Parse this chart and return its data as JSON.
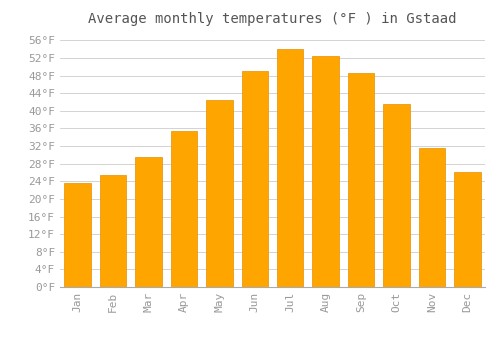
{
  "title": "Average monthly temperatures (°F ) in Gstaad",
  "months": [
    "Jan",
    "Feb",
    "Mar",
    "Apr",
    "May",
    "Jun",
    "Jul",
    "Aug",
    "Sep",
    "Oct",
    "Nov",
    "Dec"
  ],
  "values": [
    23.5,
    25.5,
    29.5,
    35.5,
    42.5,
    49.0,
    54.0,
    52.5,
    48.5,
    41.5,
    31.5,
    26.0
  ],
  "bar_color": "#FFA500",
  "bar_edge_color": "#E89000",
  "background_color": "#FFFFFF",
  "plot_bg_color": "#FFFFFF",
  "grid_color": "#CCCCCC",
  "ylim": [
    0,
    58
  ],
  "yticks": [
    0,
    4,
    8,
    12,
    16,
    20,
    24,
    28,
    32,
    36,
    40,
    44,
    48,
    52,
    56
  ],
  "ytick_labels": [
    "0°F",
    "4°F",
    "8°F",
    "12°F",
    "16°F",
    "20°F",
    "24°F",
    "28°F",
    "32°F",
    "36°F",
    "40°F",
    "44°F",
    "48°F",
    "52°F",
    "56°F"
  ],
  "title_fontsize": 10,
  "tick_fontsize": 8,
  "font_color": "#999999"
}
